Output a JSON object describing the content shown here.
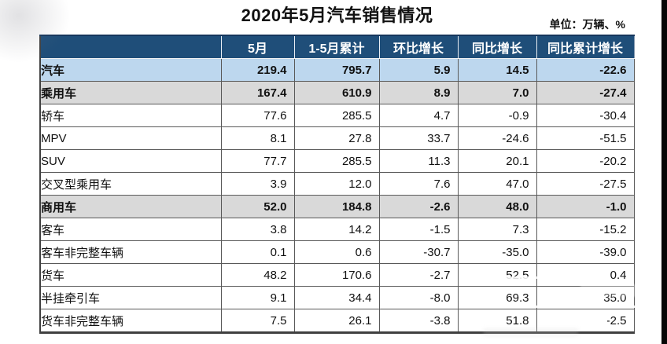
{
  "chart_data": {
    "type": "table",
    "title": "2020年5月汽车销售情况",
    "unit_label": "单位：万辆、%",
    "columns": [
      "",
      "5月",
      "1-5月累计",
      "环比增长",
      "同比增长",
      "同比累计增长"
    ],
    "rows": [
      {
        "label": "汽车",
        "indent": 0,
        "style": "blue",
        "values": [
          "219.4",
          "795.7",
          "5.9",
          "14.5",
          "-22.6"
        ]
      },
      {
        "label": "乘用车",
        "indent": 1,
        "style": "gray",
        "values": [
          "167.4",
          "610.9",
          "8.9",
          "7.0",
          "-27.4"
        ]
      },
      {
        "label": "轿车",
        "indent": 3,
        "style": "white",
        "values": [
          "77.6",
          "285.5",
          "4.7",
          "-0.9",
          "-30.4"
        ]
      },
      {
        "label": "MPV",
        "indent": 3,
        "style": "white",
        "values": [
          "8.1",
          "27.8",
          "33.7",
          "-24.6",
          "-51.5"
        ]
      },
      {
        "label": "SUV",
        "indent": 3,
        "style": "white",
        "values": [
          "77.7",
          "285.5",
          "11.3",
          "20.1",
          "-20.2"
        ]
      },
      {
        "label": "交叉型乘用车",
        "indent": 3,
        "style": "white",
        "values": [
          "3.9",
          "12.0",
          "7.6",
          "47.0",
          "-27.5"
        ]
      },
      {
        "label": "商用车",
        "indent": 1,
        "style": "gray",
        "values": [
          "52.0",
          "184.8",
          "-2.6",
          "48.0",
          "-1.0"
        ]
      },
      {
        "label": "客车",
        "indent": 2,
        "style": "white",
        "values": [
          "3.8",
          "14.2",
          "-1.5",
          "7.3",
          "-15.2"
        ]
      },
      {
        "label": "客车非完整车辆",
        "indent": 4,
        "style": "white",
        "values": [
          "0.1",
          "0.6",
          "-30.7",
          "-35.0",
          "-39.0"
        ]
      },
      {
        "label": "货车",
        "indent": 2,
        "style": "white",
        "values": [
          "48.2",
          "170.6",
          "-2.7",
          "52.5",
          "0.4"
        ]
      },
      {
        "label": "半挂牵引车",
        "indent": 4,
        "style": "white",
        "values": [
          "9.1",
          "34.4",
          "-8.0",
          "69.3",
          "35.0"
        ]
      },
      {
        "label": "货车非完整车辆",
        "indent": 4,
        "style": "white",
        "values": [
          "7.5",
          "26.1",
          "-3.8",
          "51.8",
          "-2.5"
        ]
      }
    ]
  },
  "colors": {
    "header_bg": "#1F4E79",
    "header_text": "#FFFFFF",
    "row_blue": "#BDD7EE",
    "row_gray": "#D9D9D9",
    "border_dark": "#595959",
    "edge_strip": "#060606"
  }
}
